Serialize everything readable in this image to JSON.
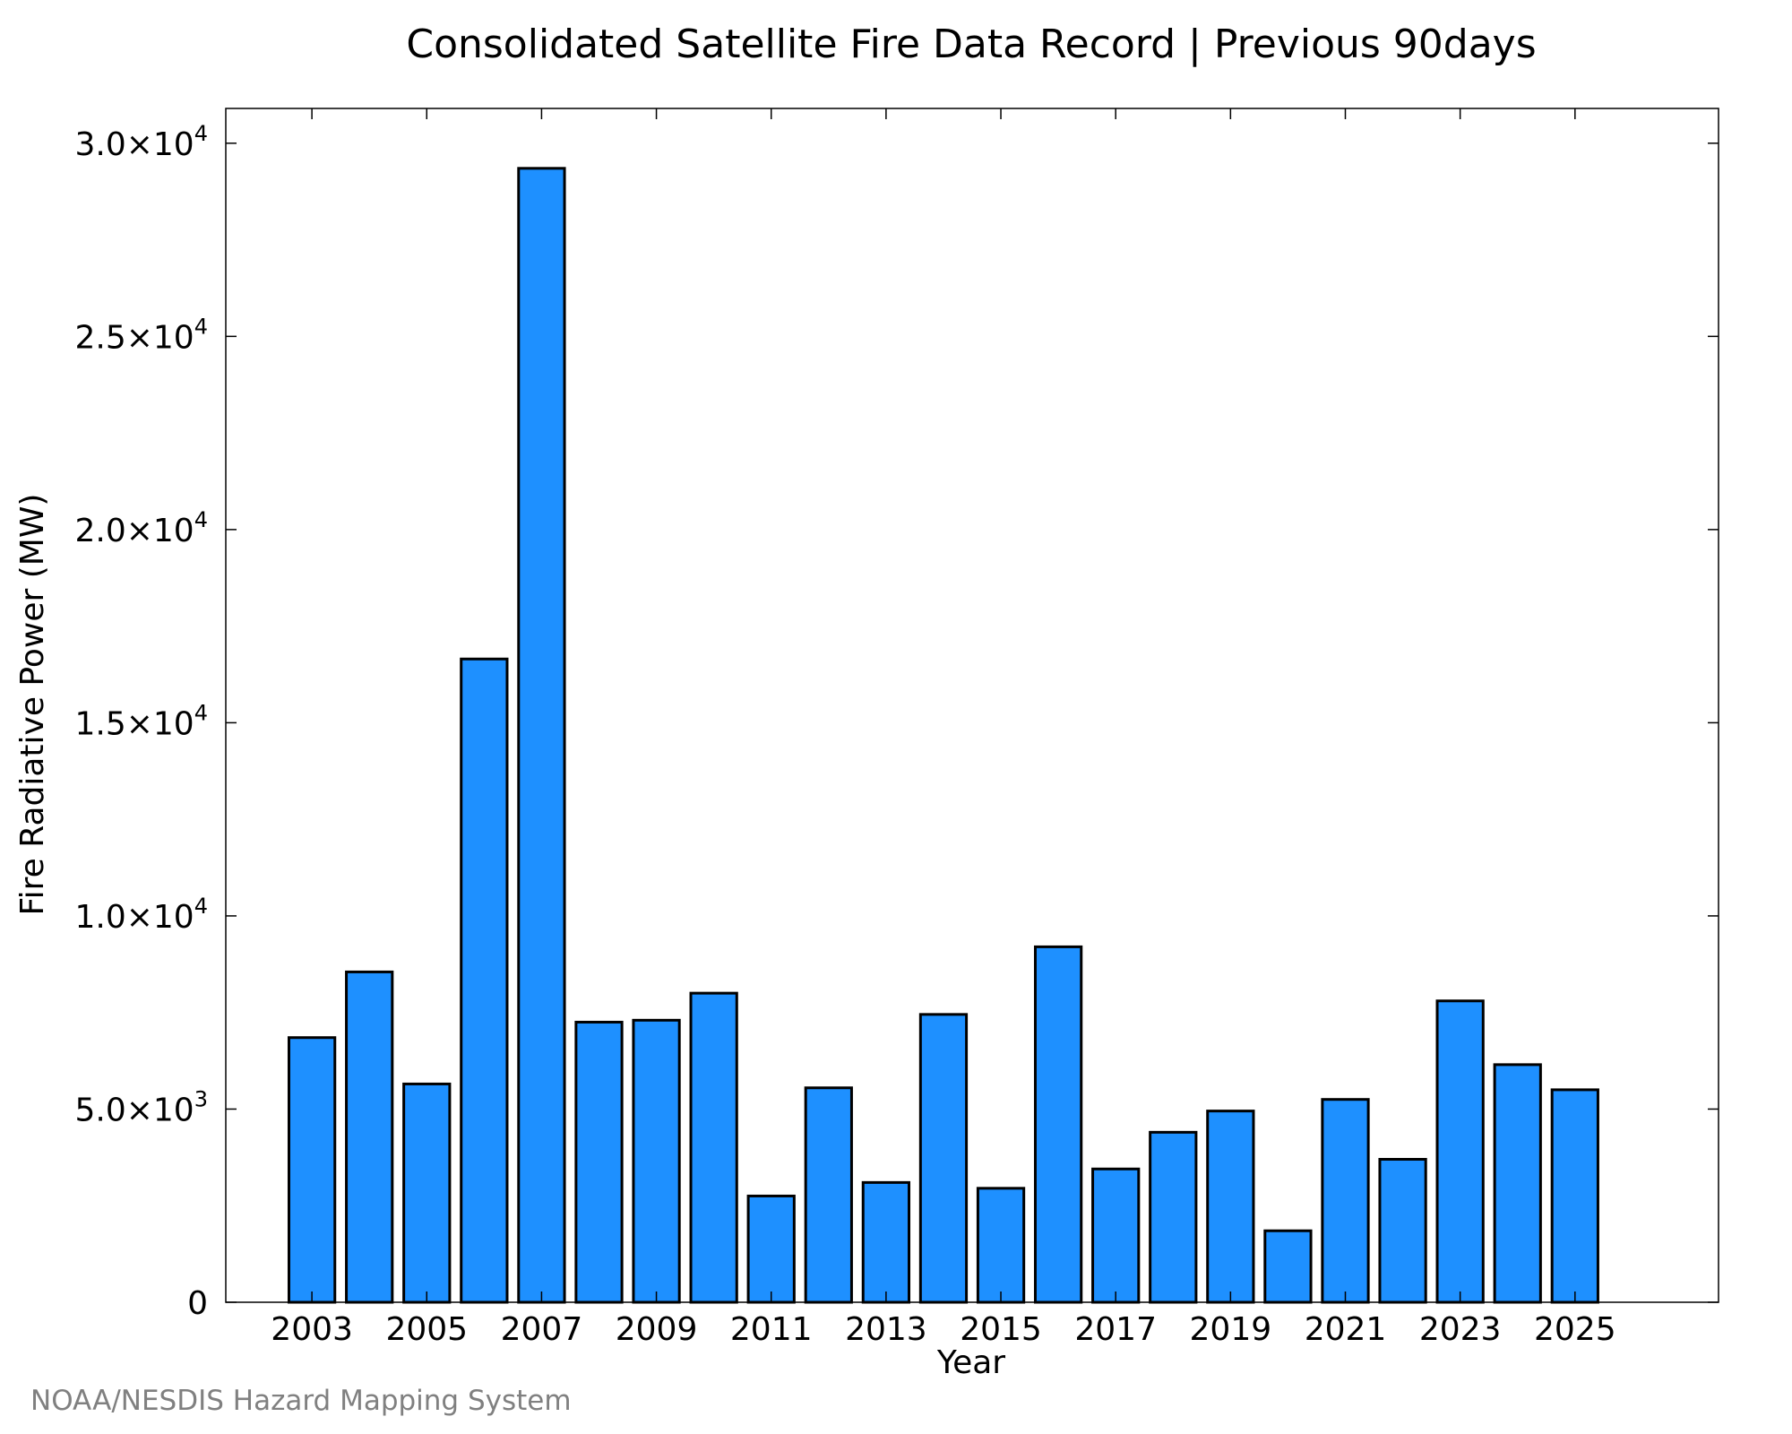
{
  "chart_data": {
    "type": "bar",
    "title": "Consolidated Satellite Fire Data Record | Previous 90days",
    "xlabel": "Year",
    "ylabel": "Fire Radiative Power (MW)",
    "credit": "NOAA/NESDIS Hazard Mapping System",
    "categories": [
      2003,
      2004,
      2005,
      2006,
      2007,
      2008,
      2009,
      2010,
      2011,
      2012,
      2013,
      2014,
      2015,
      2016,
      2017,
      2018,
      2019,
      2020,
      2021,
      2022,
      2023,
      2024,
      2025
    ],
    "values": [
      6850,
      8550,
      5650,
      16650,
      29350,
      7250,
      7300,
      8000,
      2750,
      5550,
      3100,
      7450,
      2950,
      9200,
      3450,
      4400,
      4950,
      1850,
      5250,
      3700,
      7800,
      6150,
      5500
    ],
    "xlim": [
      2001.5,
      2027.5
    ],
    "ylim": [
      0,
      30900
    ],
    "x_ticks": [
      2003,
      2005,
      2007,
      2009,
      2011,
      2013,
      2015,
      2017,
      2019,
      2021,
      2023,
      2025
    ],
    "x_tick_labels": [
      "2003",
      "2005",
      "2007",
      "2009",
      "2011",
      "2013",
      "2015",
      "2017",
      "2019",
      "2021",
      "2023",
      "2025"
    ],
    "y_ticks": [
      0,
      5000,
      10000,
      15000,
      20000,
      25000,
      30000
    ],
    "y_tick_labels": [
      {
        "mantissa": "0",
        "exp": ""
      },
      {
        "mantissa": "5.0×10",
        "exp": "3"
      },
      {
        "mantissa": "1.0×10",
        "exp": "4"
      },
      {
        "mantissa": "1.5×10",
        "exp": "4"
      },
      {
        "mantissa": "2.0×10",
        "exp": "4"
      },
      {
        "mantissa": "2.5×10",
        "exp": "4"
      },
      {
        "mantissa": "3.0×10",
        "exp": "4"
      }
    ],
    "bar_color": "#1e90ff",
    "grid": false,
    "legend": "none"
  }
}
